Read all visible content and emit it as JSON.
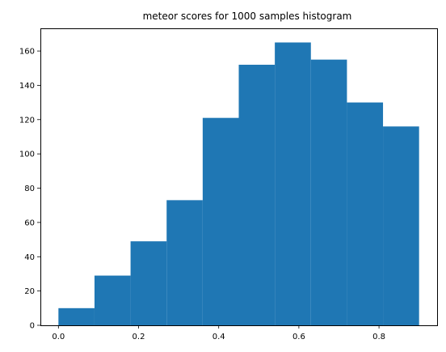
{
  "chart_data": {
    "type": "bar",
    "title": "meteor scores for 1000 samples histogram",
    "xlabel": "",
    "ylabel": "",
    "bins": [
      {
        "x0": 0.0,
        "x1": 0.09,
        "count": 10
      },
      {
        "x0": 0.09,
        "x1": 0.18,
        "count": 29
      },
      {
        "x0": 0.18,
        "x1": 0.27,
        "count": 49
      },
      {
        "x0": 0.27,
        "x1": 0.36,
        "count": 73
      },
      {
        "x0": 0.36,
        "x1": 0.45,
        "count": 121
      },
      {
        "x0": 0.45,
        "x1": 0.54,
        "count": 152
      },
      {
        "x0": 0.54,
        "x1": 0.63,
        "count": 165
      },
      {
        "x0": 0.63,
        "x1": 0.72,
        "count": 155
      },
      {
        "x0": 0.72,
        "x1": 0.81,
        "count": 130
      },
      {
        "x0": 0.81,
        "x1": 0.9,
        "count": 116
      }
    ],
    "xlim": [
      -0.045,
      0.945
    ],
    "ylim": [
      0,
      173.25
    ],
    "xticks": [
      0.0,
      0.2,
      0.4,
      0.6,
      0.8
    ],
    "xtick_labels": [
      "0.0",
      "0.2",
      "0.4",
      "0.6",
      "0.8"
    ],
    "yticks": [
      0,
      20,
      40,
      60,
      80,
      100,
      120,
      140,
      160
    ],
    "ytick_labels": [
      "0",
      "20",
      "40",
      "60",
      "80",
      "100",
      "120",
      "140",
      "160"
    ],
    "grid": false,
    "bar_color": "#1f77b4"
  }
}
